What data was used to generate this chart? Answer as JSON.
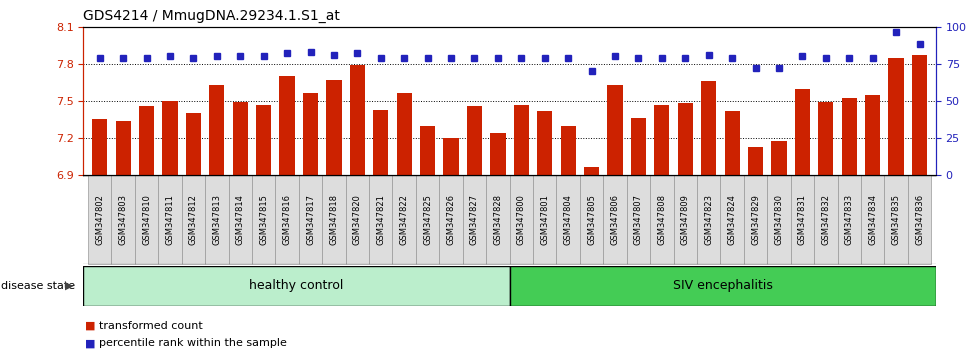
{
  "title": "GDS4214 / MmugDNA.29234.1.S1_at",
  "samples": [
    "GSM347802",
    "GSM347803",
    "GSM347810",
    "GSM347811",
    "GSM347812",
    "GSM347813",
    "GSM347814",
    "GSM347815",
    "GSM347816",
    "GSM347817",
    "GSM347818",
    "GSM347820",
    "GSM347821",
    "GSM347822",
    "GSM347825",
    "GSM347826",
    "GSM347827",
    "GSM347828",
    "GSM347800",
    "GSM347801",
    "GSM347804",
    "GSM347805",
    "GSM347806",
    "GSM347807",
    "GSM347808",
    "GSM347809",
    "GSM347823",
    "GSM347824",
    "GSM347829",
    "GSM347830",
    "GSM347831",
    "GSM347832",
    "GSM347833",
    "GSM347834",
    "GSM347835",
    "GSM347836"
  ],
  "bar_values": [
    7.35,
    7.34,
    7.46,
    7.5,
    7.4,
    7.63,
    7.49,
    7.47,
    7.7,
    7.56,
    7.67,
    7.79,
    7.43,
    7.56,
    7.3,
    7.2,
    7.46,
    7.24,
    7.47,
    7.42,
    7.3,
    6.97,
    7.63,
    7.36,
    7.47,
    7.48,
    7.66,
    7.42,
    7.13,
    7.18,
    7.6,
    7.49,
    7.52,
    7.55,
    7.85,
    7.87
  ],
  "percentile_values": [
    79,
    79,
    79,
    80,
    79,
    80,
    80,
    80,
    82,
    83,
    81,
    82,
    79,
    79,
    79,
    79,
    79,
    79,
    79,
    79,
    79,
    70,
    80,
    79,
    79,
    79,
    81,
    79,
    72,
    72,
    80,
    79,
    79,
    79,
    96,
    88
  ],
  "healthy_count": 18,
  "ylim_left": [
    6.9,
    8.1
  ],
  "ylim_right": [
    0,
    100
  ],
  "yticks_left": [
    6.9,
    7.2,
    7.5,
    7.8,
    8.1
  ],
  "yticks_right": [
    0,
    25,
    50,
    75,
    100
  ],
  "bar_color": "#cc2200",
  "percentile_color": "#2222bb",
  "healthy_color": "#bbeecc",
  "siv_color": "#44cc55",
  "label_bar": "transformed count",
  "label_pct": "percentile rank within the sample",
  "group_label_healthy": "healthy control",
  "group_label_siv": "SIV encephalitis",
  "disease_state_label": "disease state"
}
